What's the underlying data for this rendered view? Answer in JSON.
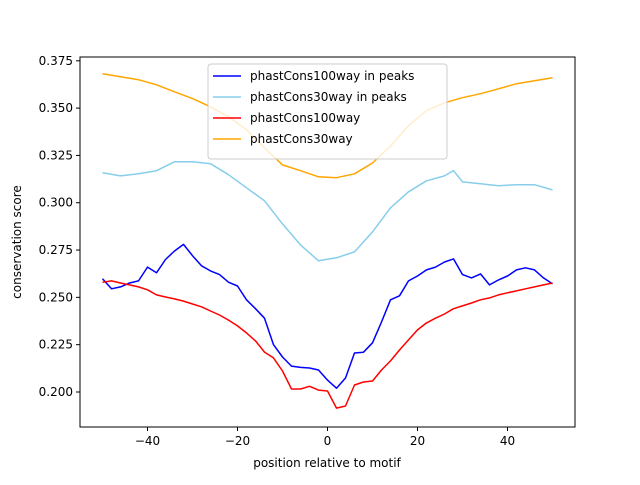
{
  "chart_data": {
    "type": "line",
    "title": "",
    "xlabel": "position relative to motif",
    "ylabel": "conservation score",
    "xlim": [
      -55,
      55
    ],
    "ylim": [
      0.1815,
      0.377
    ],
    "xticks": [
      -40,
      -20,
      0,
      20,
      40
    ],
    "xtick_labels": [
      "−40",
      "−20",
      "0",
      "20",
      "40"
    ],
    "yticks": [
      0.2,
      0.225,
      0.25,
      0.275,
      0.3,
      0.325,
      0.35,
      0.375
    ],
    "ytick_labels": [
      "0.200",
      "0.225",
      "0.250",
      "0.275",
      "0.300",
      "0.325",
      "0.350",
      "0.375"
    ],
    "grid": false,
    "legend_position": "top-center",
    "series": [
      {
        "name": "phastCons100way in peaks",
        "color": "#0000ff",
        "x": [
          -50,
          -48,
          -46,
          -44,
          -42,
          -40,
          -38,
          -36,
          -34,
          -32,
          -30,
          -28,
          -26,
          -24,
          -22,
          -20,
          -18,
          -16,
          -14,
          -12,
          -10,
          -8,
          -6,
          -4,
          -2,
          0,
          2,
          4,
          6,
          8,
          10,
          12,
          14,
          16,
          18,
          20,
          22,
          24,
          26,
          28,
          30,
          32,
          34,
          36,
          38,
          40,
          42,
          44,
          46,
          48,
          50
        ],
        "y": [
          0.2598,
          0.2545,
          0.2555,
          0.2576,
          0.2587,
          0.266,
          0.263,
          0.27,
          0.2745,
          0.278,
          0.272,
          0.2667,
          0.264,
          0.262,
          0.258,
          0.256,
          0.2487,
          0.244,
          0.239,
          0.225,
          0.2185,
          0.2137,
          0.213,
          0.2127,
          0.2116,
          0.2063,
          0.202,
          0.2074,
          0.2206,
          0.221,
          0.226,
          0.237,
          0.2487,
          0.2508,
          0.2587,
          0.2613,
          0.2645,
          0.266,
          0.2687,
          0.2703,
          0.262,
          0.2603,
          0.2624,
          0.2566,
          0.2592,
          0.2613,
          0.2645,
          0.2656,
          0.2645,
          0.2603,
          0.2571
        ]
      },
      {
        "name": "phastCons30way in peaks",
        "color": "#87ceeb",
        "x": [
          -50,
          -46,
          -42,
          -38,
          -34,
          -30,
          -26,
          -22,
          -18,
          -14,
          -10,
          -6,
          -2,
          2,
          6,
          10,
          14,
          18,
          22,
          26,
          28,
          30,
          34,
          38,
          42,
          46,
          50
        ],
        "y": [
          0.3158,
          0.3142,
          0.3153,
          0.3169,
          0.3216,
          0.3216,
          0.3206,
          0.3148,
          0.3079,
          0.301,
          0.2888,
          0.2777,
          0.2693,
          0.2709,
          0.274,
          0.2846,
          0.2973,
          0.3058,
          0.3116,
          0.3142,
          0.3169,
          0.311,
          0.31,
          0.309,
          0.3095,
          0.3095,
          0.3068
        ]
      },
      {
        "name": "phastCons100way",
        "color": "#ff0000",
        "x": [
          -50,
          -48,
          -46,
          -44,
          -42,
          -40,
          -38,
          -36,
          -34,
          -32,
          -30,
          -28,
          -26,
          -24,
          -22,
          -20,
          -18,
          -16,
          -14,
          -12,
          -10,
          -8,
          -6,
          -4,
          -2,
          0,
          2,
          4,
          6,
          8,
          10,
          12,
          14,
          16,
          18,
          20,
          22,
          24,
          26,
          28,
          30,
          32,
          34,
          36,
          38,
          40,
          42,
          44,
          46,
          48,
          50
        ],
        "y": [
          0.258,
          0.2587,
          0.2576,
          0.2566,
          0.2555,
          0.254,
          0.2513,
          0.2502,
          0.2492,
          0.248,
          0.2465,
          0.245,
          0.2428,
          0.2407,
          0.238,
          0.2349,
          0.2312,
          0.227,
          0.2211,
          0.218,
          0.2111,
          0.2016,
          0.2016,
          0.203,
          0.201,
          0.2005,
          0.1915,
          0.1926,
          0.2037,
          0.2053,
          0.2058,
          0.2116,
          0.2164,
          0.2222,
          0.2275,
          0.2328,
          0.2365,
          0.239,
          0.2412,
          0.244,
          0.2455,
          0.247,
          0.2487,
          0.2497,
          0.2513,
          0.2524,
          0.2534,
          0.2545,
          0.2555,
          0.2566,
          0.2576
        ]
      },
      {
        "name": "phastCons30way",
        "color": "#ffa500",
        "x": [
          -50,
          -46,
          -42,
          -38,
          -34,
          -30,
          -26,
          -22,
          -18,
          -14,
          -10,
          -6,
          -2,
          2,
          6,
          10,
          14,
          18,
          22,
          26,
          30,
          34,
          38,
          42,
          46,
          50
        ],
        "y": [
          0.3682,
          0.3666,
          0.365,
          0.3623,
          0.3586,
          0.355,
          0.3507,
          0.3454,
          0.3386,
          0.329,
          0.32,
          0.3169,
          0.3137,
          0.3132,
          0.3153,
          0.321,
          0.33,
          0.3407,
          0.3486,
          0.3528,
          0.3555,
          0.3576,
          0.3602,
          0.3629,
          0.3645,
          0.366
        ]
      }
    ]
  }
}
